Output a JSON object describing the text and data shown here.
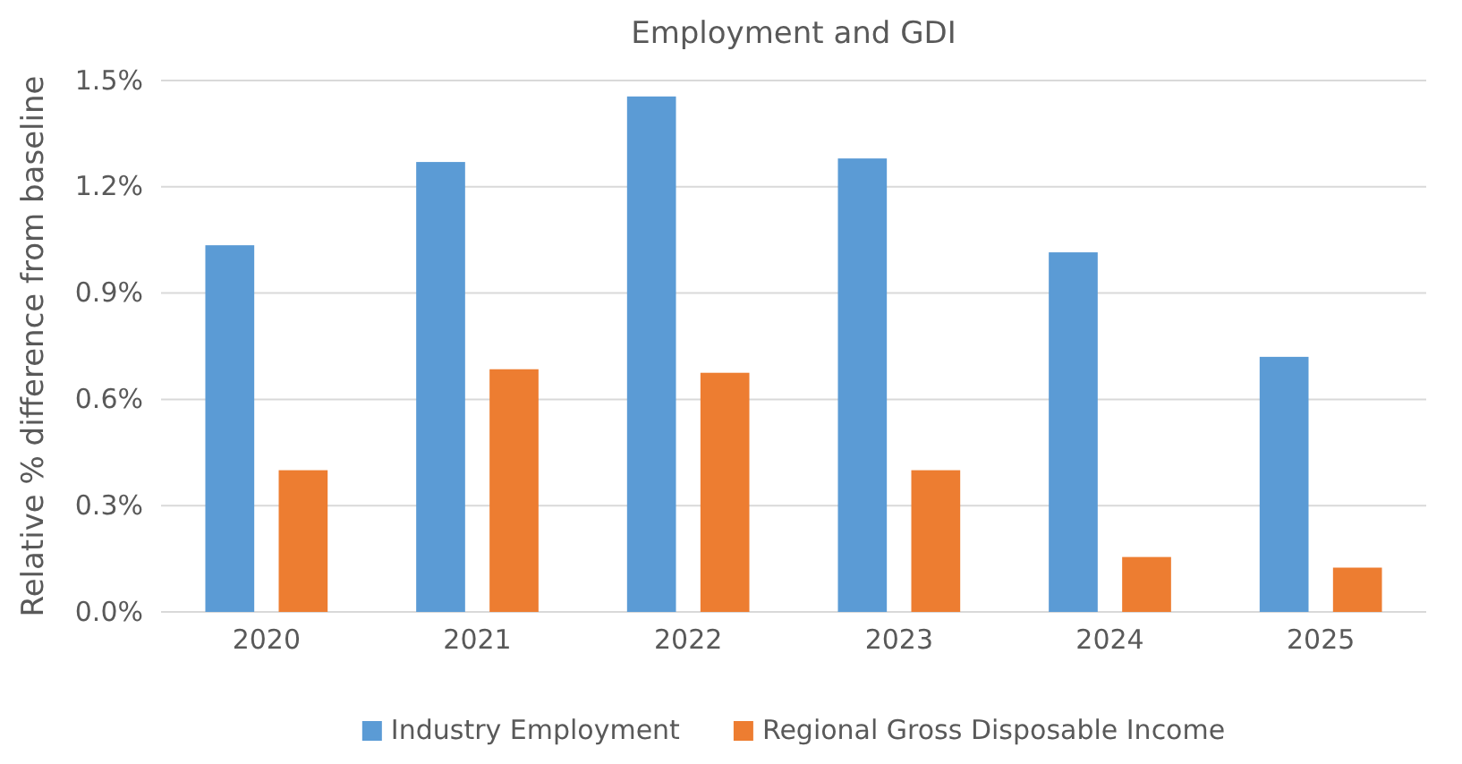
{
  "chart_data": {
    "type": "bar",
    "title": "Employment and GDI",
    "ylabel": "Relative % difference from baseline",
    "categories": [
      "2020",
      "2021",
      "2022",
      "2023",
      "2024",
      "2025"
    ],
    "series": [
      {
        "name": "Industry Employment",
        "color": "#5b9bd5",
        "values": [
          1.035,
          1.27,
          1.455,
          1.28,
          1.015,
          0.72
        ]
      },
      {
        "name": "Regional Gross Disposable Income",
        "color": "#ed7d31",
        "values": [
          0.4,
          0.685,
          0.675,
          0.4,
          0.155,
          0.125
        ]
      }
    ],
    "ylim": [
      0,
      1.5
    ],
    "yticks": [
      {
        "value": 0,
        "label": "0.0%"
      },
      {
        "value": 0.3,
        "label": "0.3%"
      },
      {
        "value": 0.6,
        "label": "0.6%"
      },
      {
        "value": 0.9,
        "label": "0.9%"
      },
      {
        "value": 1.2,
        "label": "1.2%"
      },
      {
        "value": 1.5,
        "label": "1.5%"
      }
    ],
    "grid": "y",
    "legend": "bottom"
  }
}
